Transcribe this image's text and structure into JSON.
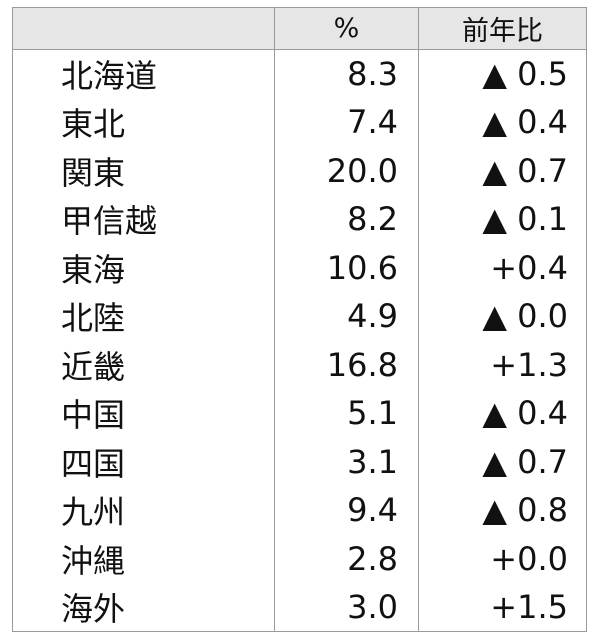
{
  "table": {
    "headers": [
      "",
      "%",
      "前年比"
    ],
    "rows": [
      {
        "region": "北海道",
        "pct": "8.3",
        "yoy": "▲ 0.5"
      },
      {
        "region": "東北",
        "pct": "7.4",
        "yoy": "▲ 0.4"
      },
      {
        "region": "関東",
        "pct": "20.0",
        "yoy": "▲ 0.7"
      },
      {
        "region": "甲信越",
        "pct": "8.2",
        "yoy": "▲ 0.1"
      },
      {
        "region": "東海",
        "pct": "10.6",
        "yoy": "+0.4"
      },
      {
        "region": "北陸",
        "pct": "4.9",
        "yoy": "▲ 0.0"
      },
      {
        "region": "近畿",
        "pct": "16.8",
        "yoy": "+1.3"
      },
      {
        "region": "中国",
        "pct": "5.1",
        "yoy": "▲ 0.4"
      },
      {
        "region": "四国",
        "pct": "3.1",
        "yoy": "▲ 0.7"
      },
      {
        "region": "九州",
        "pct": "9.4",
        "yoy": "▲ 0.8"
      },
      {
        "region": "沖縄",
        "pct": "2.8",
        "yoy": "+0.0"
      },
      {
        "region": "海外",
        "pct": "3.0",
        "yoy": "+1.5"
      }
    ]
  }
}
